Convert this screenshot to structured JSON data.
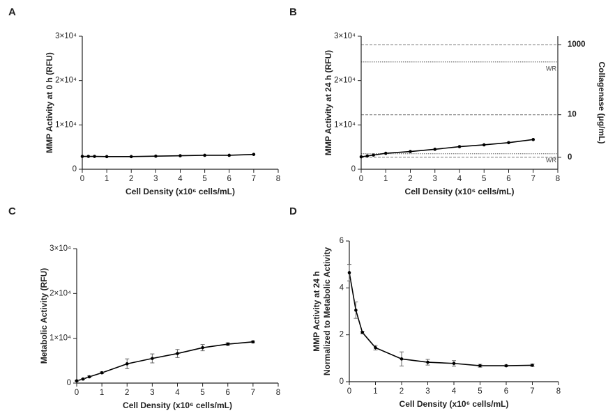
{
  "chart_data": [
    {
      "type": "line",
      "panel_label": "A",
      "color": "#000000",
      "x": [
        0,
        0.25,
        0.5,
        1,
        2,
        3,
        4,
        5,
        6,
        7
      ],
      "values": [
        2900,
        2900,
        2900,
        2850,
        2850,
        2950,
        3050,
        3150,
        3150,
        3350
      ],
      "xlim": [
        0,
        8
      ],
      "xticks": [
        0,
        1,
        2,
        3,
        4,
        5,
        6,
        7,
        8
      ],
      "ylim": [
        0,
        30000
      ],
      "yticks": [
        0,
        {
          "value": 10000,
          "label": "1×10⁴"
        },
        {
          "value": 20000,
          "label": "2×10⁴"
        },
        {
          "value": 30000,
          "label": "3×10⁴"
        }
      ],
      "x_label": "Cell Density (x10⁶ cells/mL)",
      "y_label": [
        "MMP Activity at 0 h (RFU)"
      ]
    },
    {
      "type": "line",
      "panel_label": "B",
      "color": "#000000",
      "x": [
        0,
        0.25,
        0.5,
        1,
        2,
        3,
        4,
        5,
        6,
        7
      ],
      "values": [
        2800,
        3000,
        3200,
        3600,
        4000,
        4500,
        5100,
        5500,
        6000,
        6700
      ],
      "xlim": [
        0,
        8
      ],
      "xticks": [
        0,
        1,
        2,
        3,
        4,
        5,
        6,
        7,
        8
      ],
      "ylim": [
        0,
        30000
      ],
      "yticks": [
        0,
        {
          "value": 10000,
          "label": "1×10⁴"
        },
        {
          "value": 20000,
          "label": "2×10⁴"
        },
        {
          "value": 30000,
          "label": "3×10⁴"
        }
      ],
      "x_label": "Cell Density (x10⁶ cells/mL)",
      "y_label": [
        "MMP Activity at 24 h (RFU)"
      ],
      "y2_label": "Collagenase (μg/mL)",
      "standards": [
        {
          "value": 28100,
          "label": "1000"
        },
        {
          "value": 12300,
          "label": "10"
        },
        {
          "value": 2700,
          "label": "0"
        }
      ],
      "working_range": [
        {
          "value": 24200,
          "label": "WR"
        },
        {
          "value": 3500,
          "label": "WR"
        }
      ]
    },
    {
      "type": "line",
      "panel_label": "C",
      "color": "#000000",
      "x": [
        0,
        0.25,
        0.5,
        1,
        2,
        3,
        4,
        5,
        6,
        7
      ],
      "values": [
        500,
        900,
        1400,
        2300,
        4300,
        5500,
        6600,
        7900,
        8700,
        9200
      ],
      "errors": [
        100,
        100,
        200,
        200,
        1100,
        1000,
        900,
        700,
        300,
        200
      ],
      "xlim": [
        0,
        8
      ],
      "xticks": [
        0,
        1,
        2,
        3,
        4,
        5,
        6,
        7,
        8
      ],
      "ylim": [
        0,
        30000
      ],
      "yticks": [
        0,
        {
          "value": 10000,
          "label": "1×10⁴"
        },
        {
          "value": 20000,
          "label": "2×10⁴"
        },
        {
          "value": 30000,
          "label": "3×10⁴"
        }
      ],
      "x_label": "Cell Density (x10⁶ cells/mL)",
      "y_label": [
        "Metabolic Activity (RFU)"
      ]
    },
    {
      "type": "line",
      "panel_label": "D",
      "color": "#000000",
      "x": [
        0,
        0.25,
        0.5,
        1,
        2,
        3,
        4,
        5,
        6,
        7
      ],
      "values": [
        4.65,
        3.05,
        2.1,
        1.45,
        0.97,
        0.83,
        0.78,
        0.68,
        0.68,
        0.7
      ],
      "errors": [
        0.35,
        0.35,
        0.05,
        0.1,
        0.3,
        0.12,
        0.12,
        0.06,
        0.03,
        0.05
      ],
      "xlim": [
        0,
        8
      ],
      "xticks": [
        0,
        1,
        2,
        3,
        4,
        5,
        6,
        7,
        8
      ],
      "ylim": [
        0,
        6
      ],
      "yticks": [
        0,
        2,
        4,
        6
      ],
      "x_label": "Cell Density (x10⁶ cells/mL)",
      "y_label": [
        "MMP Activity at 24 h",
        "Normalized to Metabolic Activity"
      ]
    }
  ]
}
